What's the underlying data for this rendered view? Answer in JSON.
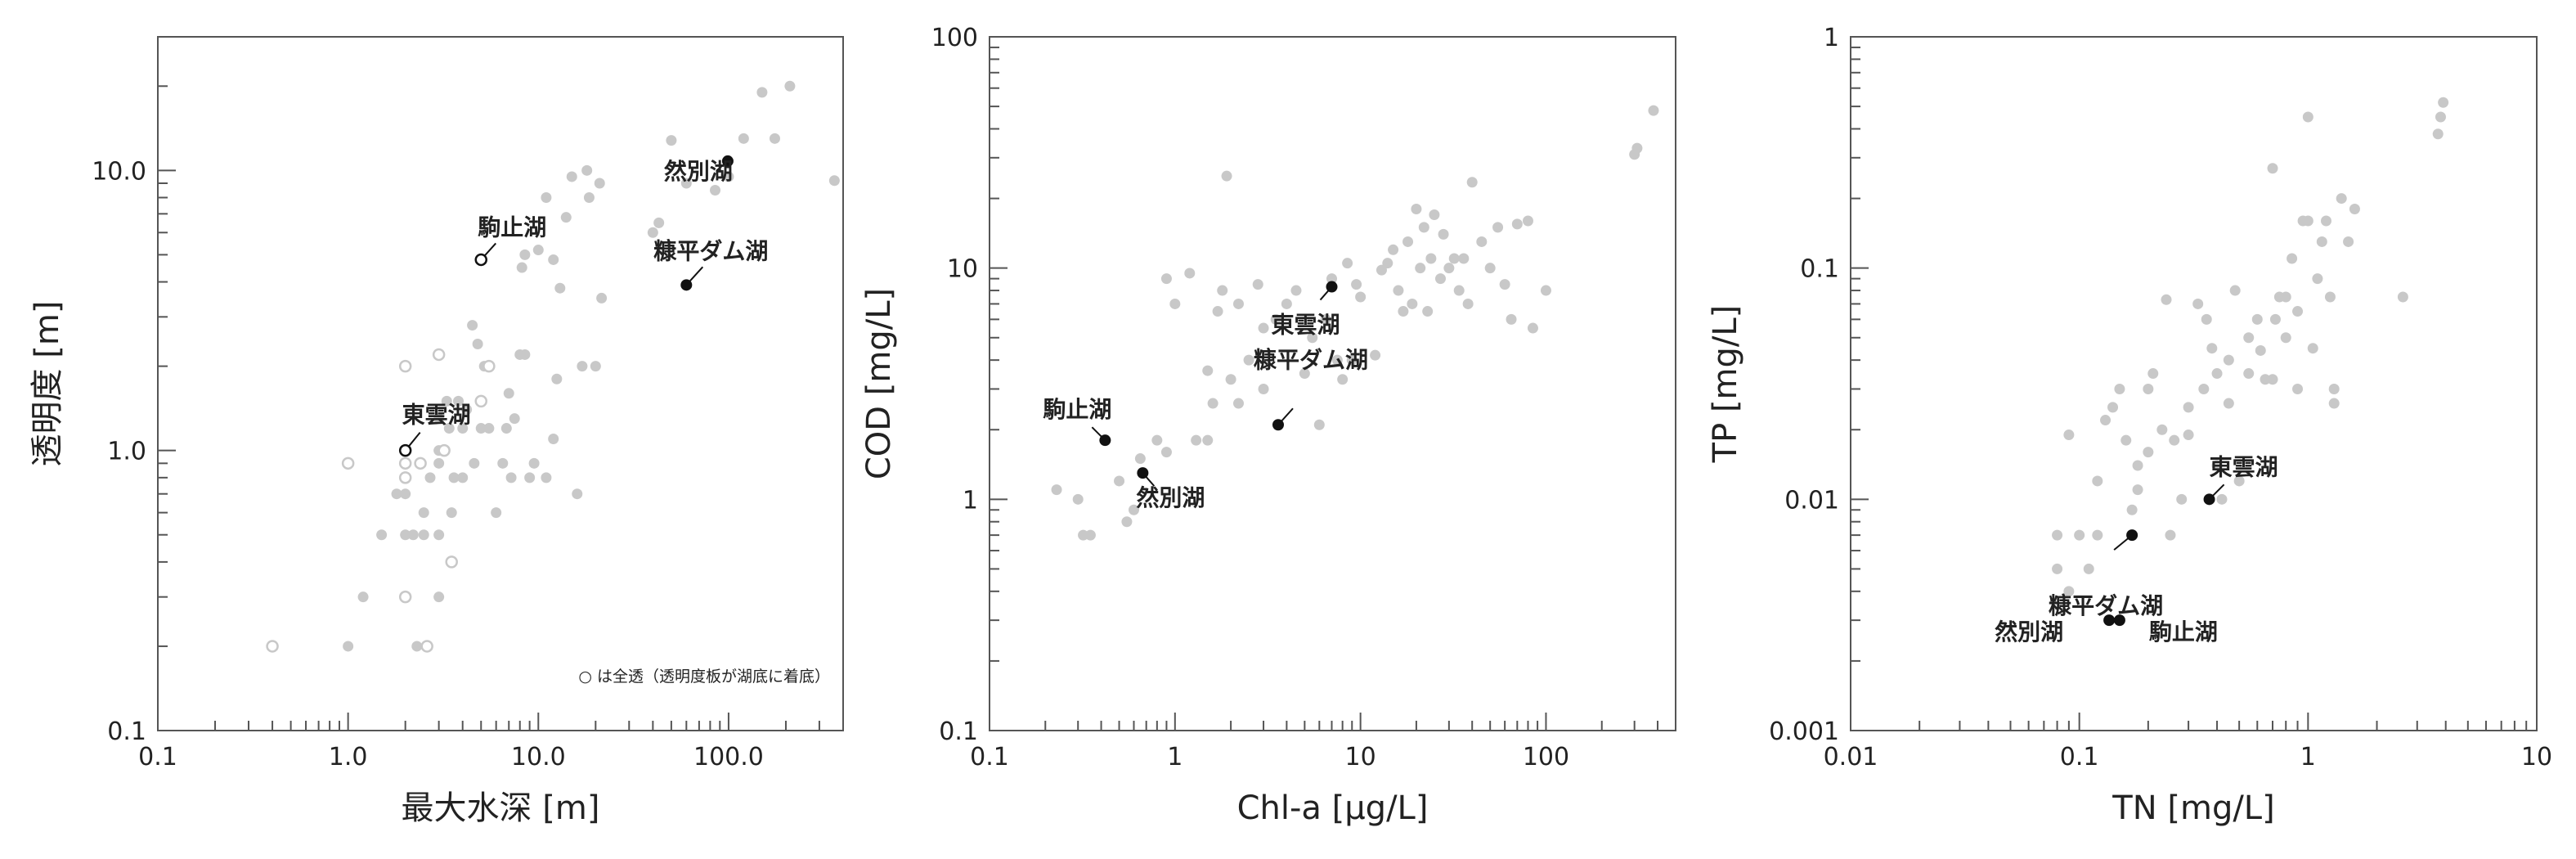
{
  "chart_data": [
    {
      "type": "scatter",
      "xlabel": "最大水深 [m]",
      "ylabel": "透明度 [m]",
      "xscale": "log",
      "yscale": "log",
      "xlim": [
        0.1,
        400
      ],
      "ylim": [
        0.1,
        30
      ],
      "xtick_labels": [
        "0.1",
        "1.0",
        "10.0",
        "100.0"
      ],
      "xtick_values": [
        0.1,
        1,
        10,
        100
      ],
      "ytick_labels": [
        "0.1",
        "1.0",
        "10.0"
      ],
      "ytick_values": [
        0.1,
        1,
        10
      ],
      "legend_note": "○ は全透（透明度板が湖底に着底）",
      "legend_position": "bottom-right",
      "colors": {
        "points": "#c8c8c8",
        "highlight": "#111111"
      },
      "points": [
        [
          1.2,
          0.3
        ],
        [
          1.0,
          0.2
        ],
        [
          1.5,
          0.5
        ],
        [
          1.8,
          0.7
        ],
        [
          2.0,
          0.7
        ],
        [
          2.0,
          0.5
        ],
        [
          2.2,
          0.5
        ],
        [
          2.3,
          0.2
        ],
        [
          2.5,
          0.5
        ],
        [
          2.5,
          0.6
        ],
        [
          2.7,
          0.8
        ],
        [
          3.0,
          0.3
        ],
        [
          3.0,
          0.5
        ],
        [
          3.0,
          0.9
        ],
        [
          3.0,
          1.0
        ],
        [
          3.0,
          1.3
        ],
        [
          3.3,
          1.5
        ],
        [
          3.4,
          1.2
        ],
        [
          3.5,
          0.6
        ],
        [
          3.6,
          0.8
        ],
        [
          3.8,
          1.5
        ],
        [
          4.0,
          1.2
        ],
        [
          4.0,
          0.8
        ],
        [
          4.2,
          1.4
        ],
        [
          4.5,
          2.8
        ],
        [
          4.6,
          0.9
        ],
        [
          4.8,
          2.4
        ],
        [
          5.0,
          1.2
        ],
        [
          5.0,
          1.5
        ],
        [
          5.2,
          2.0
        ],
        [
          5.5,
          1.2
        ],
        [
          6.0,
          0.6
        ],
        [
          6.5,
          0.9
        ],
        [
          6.8,
          1.2
        ],
        [
          7.0,
          1.6
        ],
        [
          7.2,
          0.8
        ],
        [
          7.5,
          1.3
        ],
        [
          8.0,
          2.2
        ],
        [
          8.2,
          4.5
        ],
        [
          8.5,
          2.2
        ],
        [
          8.5,
          5.0
        ],
        [
          9.0,
          0.8
        ],
        [
          9.5,
          0.9
        ],
        [
          10.0,
          5.2
        ],
        [
          11.0,
          0.8
        ],
        [
          11.0,
          8.0
        ],
        [
          12.0,
          4.8
        ],
        [
          12.0,
          1.1
        ],
        [
          12.5,
          1.8
        ],
        [
          13.0,
          3.8
        ],
        [
          14.0,
          6.8
        ],
        [
          15.0,
          9.5
        ],
        [
          16.0,
          0.7
        ],
        [
          17.0,
          2.0
        ],
        [
          18.0,
          10.0
        ],
        [
          18.5,
          8.0
        ],
        [
          20.0,
          2.0
        ],
        [
          21.0,
          9.0
        ],
        [
          21.5,
          3.5
        ],
        [
          40.0,
          6.0
        ],
        [
          43.0,
          6.5
        ],
        [
          50.0,
          12.8
        ],
        [
          60.0,
          9.0
        ],
        [
          85.0,
          8.5
        ],
        [
          100.0,
          9.5
        ],
        [
          120.0,
          13.0
        ],
        [
          150.0,
          19.0
        ],
        [
          175.0,
          13.0
        ],
        [
          210.0,
          20.0
        ],
        [
          360.0,
          9.2
        ]
      ],
      "open_points": [
        [
          0.4,
          0.2
        ],
        [
          1.0,
          0.9
        ],
        [
          2.0,
          2.0
        ],
        [
          2.0,
          0.9
        ],
        [
          2.0,
          0.8
        ],
        [
          2.0,
          0.3
        ],
        [
          2.6,
          0.2
        ],
        [
          3.0,
          2.2
        ],
        [
          3.5,
          0.4
        ],
        [
          3.2,
          1.0
        ],
        [
          5.0,
          1.5
        ],
        [
          2.4,
          0.9
        ],
        [
          5.5,
          2.0
        ]
      ],
      "highlights": [
        {
          "label": "然別湖",
          "x": 99,
          "y": 10.8,
          "open": false
        },
        {
          "label": "駒止湖",
          "x": 5.0,
          "y": 4.8,
          "open": true
        },
        {
          "label": "糠平ダム湖",
          "x": 60,
          "y": 3.9,
          "open": false
        },
        {
          "label": "東雲湖",
          "x": 2.0,
          "y": 1.0,
          "open": true
        }
      ]
    },
    {
      "type": "scatter",
      "xlabel": "Chl-a [μg/L]",
      "ylabel": "COD [mg/L]",
      "xscale": "log",
      "yscale": "log",
      "xlim": [
        0.1,
        500
      ],
      "ylim": [
        0.1,
        100
      ],
      "xtick_labels": [
        "0.1",
        "1",
        "10",
        "100"
      ],
      "xtick_values": [
        0.1,
        1,
        10,
        100
      ],
      "ytick_labels": [
        "0.1",
        "1",
        "10",
        "100"
      ],
      "ytick_values": [
        0.1,
        1,
        10,
        100
      ],
      "colors": {
        "points": "#c8c8c8",
        "highlight": "#111111"
      },
      "points": [
        [
          0.23,
          1.1
        ],
        [
          0.3,
          1.0
        ],
        [
          0.32,
          0.7
        ],
        [
          0.35,
          0.7
        ],
        [
          0.5,
          1.2
        ],
        [
          0.55,
          0.8
        ],
        [
          0.6,
          0.9
        ],
        [
          0.65,
          1.5
        ],
        [
          0.8,
          1.8
        ],
        [
          0.9,
          1.6
        ],
        [
          0.9,
          9.0
        ],
        [
          1.0,
          7.0
        ],
        [
          1.2,
          9.5
        ],
        [
          1.3,
          1.8
        ],
        [
          1.5,
          1.8
        ],
        [
          1.5,
          3.6
        ],
        [
          1.6,
          2.6
        ],
        [
          1.7,
          6.5
        ],
        [
          1.8,
          8.0
        ],
        [
          1.9,
          25.0
        ],
        [
          2.0,
          3.3
        ],
        [
          2.2,
          7.0
        ],
        [
          2.2,
          2.6
        ],
        [
          2.5,
          4.0
        ],
        [
          2.8,
          8.5
        ],
        [
          3.0,
          5.5
        ],
        [
          3.0,
          3.0
        ],
        [
          3.5,
          6.0
        ],
        [
          4.0,
          7.0
        ],
        [
          4.5,
          8.0
        ],
        [
          5.0,
          3.5
        ],
        [
          5.5,
          5.0
        ],
        [
          6.0,
          2.1
        ],
        [
          6.5,
          6.0
        ],
        [
          7.0,
          9.0
        ],
        [
          7.5,
          4.0
        ],
        [
          8.0,
          3.3
        ],
        [
          8.5,
          10.5
        ],
        [
          9.0,
          4.0
        ],
        [
          9.5,
          8.5
        ],
        [
          10.0,
          7.5
        ],
        [
          12.0,
          4.2
        ],
        [
          13.0,
          9.8
        ],
        [
          14.0,
          10.5
        ],
        [
          15.0,
          12.0
        ],
        [
          16.0,
          8.0
        ],
        [
          17.0,
          6.5
        ],
        [
          18.0,
          13.0
        ],
        [
          19.0,
          7.0
        ],
        [
          20.0,
          18.0
        ],
        [
          21.0,
          10.0
        ],
        [
          22.0,
          15.0
        ],
        [
          23.0,
          6.5
        ],
        [
          24.0,
          11.0
        ],
        [
          25.0,
          17.0
        ],
        [
          27.0,
          9.0
        ],
        [
          28.0,
          14.0
        ],
        [
          30.0,
          10.0
        ],
        [
          32.0,
          11.0
        ],
        [
          34.0,
          8.0
        ],
        [
          36.0,
          11.0
        ],
        [
          38.0,
          7.0
        ],
        [
          40.0,
          23.5
        ],
        [
          45.0,
          13.0
        ],
        [
          50.0,
          10.0
        ],
        [
          55.0,
          15.0
        ],
        [
          60.0,
          8.5
        ],
        [
          65.0,
          6.0
        ],
        [
          70.0,
          15.5
        ],
        [
          80.0,
          16.0
        ],
        [
          85.0,
          5.5
        ],
        [
          100.0,
          8.0
        ],
        [
          300.0,
          31.0
        ],
        [
          310.0,
          33.0
        ],
        [
          380.0,
          48.0
        ]
      ],
      "highlights": [
        {
          "label": "東雲湖",
          "x": 7.0,
          "y": 8.3
        },
        {
          "label": "駒止湖",
          "x": 0.42,
          "y": 1.8
        },
        {
          "label": "糠平ダム湖",
          "x": 3.6,
          "y": 2.1
        },
        {
          "label": "然別湖",
          "x": 0.67,
          "y": 1.3
        }
      ]
    },
    {
      "type": "scatter",
      "xlabel": "TN [mg/L]",
      "ylabel": "TP [mg/L]",
      "xscale": "log",
      "yscale": "log",
      "xlim": [
        0.01,
        10
      ],
      "ylim": [
        0.001,
        1
      ],
      "xtick_labels": [
        "0.01",
        "0.1",
        "1",
        "10"
      ],
      "xtick_values": [
        0.01,
        0.1,
        1,
        10
      ],
      "ytick_labels": [
        "0.001",
        "0.01",
        "0.1",
        "1"
      ],
      "ytick_values": [
        0.001,
        0.01,
        0.1,
        1
      ],
      "colors": {
        "points": "#c8c8c8",
        "highlight": "#111111"
      },
      "points": [
        [
          0.08,
          0.007
        ],
        [
          0.08,
          0.005
        ],
        [
          0.09,
          0.004
        ],
        [
          0.09,
          0.019
        ],
        [
          0.1,
          0.007
        ],
        [
          0.11,
          0.005
        ],
        [
          0.12,
          0.007
        ],
        [
          0.12,
          0.012
        ],
        [
          0.13,
          0.022
        ],
        [
          0.14,
          0.025
        ],
        [
          0.15,
          0.03
        ],
        [
          0.16,
          0.018
        ],
        [
          0.17,
          0.009
        ],
        [
          0.18,
          0.011
        ],
        [
          0.18,
          0.014
        ],
        [
          0.2,
          0.016
        ],
        [
          0.2,
          0.03
        ],
        [
          0.21,
          0.035
        ],
        [
          0.23,
          0.02
        ],
        [
          0.24,
          0.073
        ],
        [
          0.25,
          0.007
        ],
        [
          0.26,
          0.018
        ],
        [
          0.28,
          0.01
        ],
        [
          0.3,
          0.019
        ],
        [
          0.3,
          0.025
        ],
        [
          0.33,
          0.07
        ],
        [
          0.35,
          0.03
        ],
        [
          0.36,
          0.06
        ],
        [
          0.38,
          0.045
        ],
        [
          0.4,
          0.035
        ],
        [
          0.4,
          0.014
        ],
        [
          0.42,
          0.01
        ],
        [
          0.45,
          0.026
        ],
        [
          0.45,
          0.04
        ],
        [
          0.48,
          0.08
        ],
        [
          0.5,
          0.012
        ],
        [
          0.55,
          0.05
        ],
        [
          0.55,
          0.035
        ],
        [
          0.6,
          0.06
        ],
        [
          0.62,
          0.044
        ],
        [
          0.65,
          0.033
        ],
        [
          0.7,
          0.033
        ],
        [
          0.7,
          0.27
        ],
        [
          0.72,
          0.06
        ],
        [
          0.75,
          0.075
        ],
        [
          0.8,
          0.05
        ],
        [
          0.8,
          0.075
        ],
        [
          0.85,
          0.11
        ],
        [
          0.9,
          0.03
        ],
        [
          0.9,
          0.065
        ],
        [
          0.95,
          0.16
        ],
        [
          1.0,
          0.16
        ],
        [
          1.0,
          0.45
        ],
        [
          1.05,
          0.045
        ],
        [
          1.1,
          0.09
        ],
        [
          1.15,
          0.13
        ],
        [
          1.2,
          0.16
        ],
        [
          1.25,
          0.075
        ],
        [
          1.3,
          0.03
        ],
        [
          1.3,
          0.026
        ],
        [
          1.4,
          0.2
        ],
        [
          1.5,
          0.13
        ],
        [
          1.6,
          0.18
        ],
        [
          2.6,
          0.075
        ],
        [
          3.7,
          0.38
        ],
        [
          3.8,
          0.45
        ],
        [
          3.9,
          0.52
        ]
      ],
      "highlights": [
        {
          "label": "東雲湖",
          "x": 0.37,
          "y": 0.01
        },
        {
          "label": "糠平ダム湖",
          "x": 0.17,
          "y": 0.007
        },
        {
          "label": "然別湖",
          "x": 0.135,
          "y": 0.003
        },
        {
          "label": "駒止湖",
          "x": 0.15,
          "y": 0.003
        }
      ]
    }
  ]
}
